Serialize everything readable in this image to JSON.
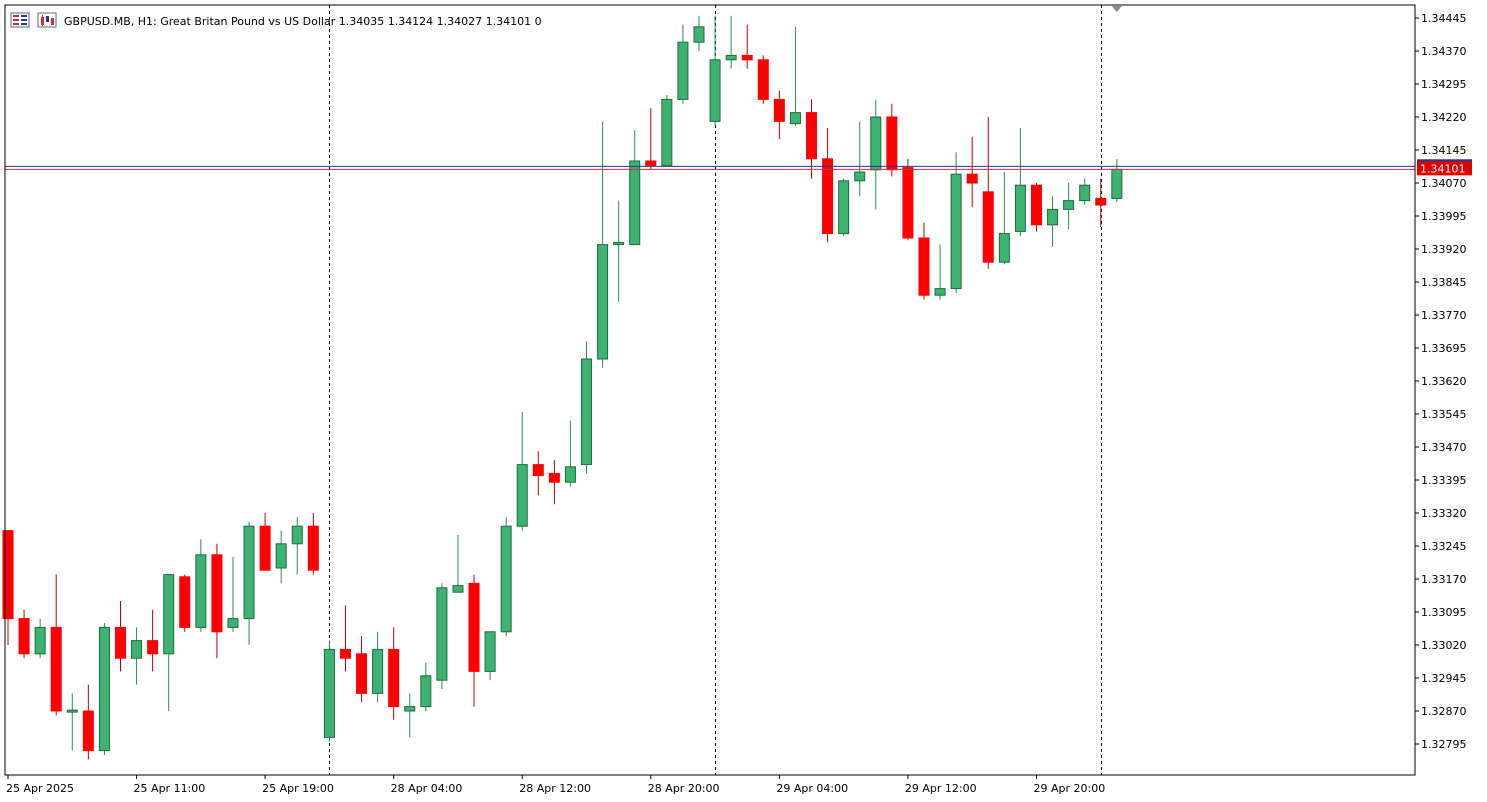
{
  "header": {
    "symbol_text": "GBPUSD.MB, H1:  Great Britan Pound vs US Dollar  1.34035 1.34124 1.34027 1.34101  0",
    "icons": [
      "candles-menu-icon",
      "chart-type-icon"
    ]
  },
  "colors": {
    "bull": "#3cb371",
    "bear": "#ff0000",
    "wick_bull": "#2e8b57",
    "wick_bear": "#c00000",
    "bid_line": "#d32f2f",
    "ask_line": "#1f3a93",
    "price_badge": "#e00000",
    "grid": "#000000",
    "frame": "#000000"
  },
  "chart_data": {
    "type": "candlestick",
    "symbol": "GBPUSD.MB",
    "timeframe": "H1",
    "description": "Great Britan Pound vs US Dollar",
    "last_ohlc": {
      "open": 1.34035,
      "high": 1.34124,
      "low": 1.34027,
      "close": 1.34101
    },
    "current_price_label": "1.34101",
    "y_ticks": [
      "1.34445",
      "1.34370",
      "1.34295",
      "1.34220",
      "1.34145",
      "1.34070",
      "1.33995",
      "1.33920",
      "1.33845",
      "1.33770",
      "1.33695",
      "1.33620",
      "1.33545",
      "1.33470",
      "1.33395",
      "1.33320",
      "1.33245",
      "1.33170",
      "1.33095",
      "1.33020",
      "1.32945",
      "1.32870",
      "1.32795"
    ],
    "ylim": [
      1.3275,
      1.34465
    ],
    "x_ticks": [
      {
        "label": "25 Apr 2025",
        "index": 0
      },
      {
        "label": "25 Apr 11:00",
        "index": 8
      },
      {
        "label": "25 Apr 19:00",
        "index": 16
      },
      {
        "label": "28 Apr 04:00",
        "index": 24
      },
      {
        "label": "28 Apr 12:00",
        "index": 32
      },
      {
        "label": "28 Apr 20:00",
        "index": 40
      },
      {
        "label": "29 Apr 04:00",
        "index": 48
      },
      {
        "label": "29 Apr 12:00",
        "index": 56
      },
      {
        "label": "29 Apr 20:00",
        "index": 64
      }
    ],
    "period_separators": [
      20,
      44,
      68
    ],
    "candles": [
      {
        "o": 1.3328,
        "h": 1.3328,
        "l": 1.3302,
        "c": 1.3308
      },
      {
        "o": 1.3308,
        "h": 1.331,
        "l": 1.3299,
        "c": 1.33
      },
      {
        "o": 1.33,
        "h": 1.3308,
        "l": 1.3299,
        "c": 1.3306
      },
      {
        "o": 1.3306,
        "h": 1.3318,
        "l": 1.3286,
        "c": 1.3287
      },
      {
        "o": 1.3287,
        "h": 1.3291,
        "l": 1.3278,
        "c": 1.32872
      },
      {
        "o": 1.3287,
        "h": 1.3293,
        "l": 1.3276,
        "c": 1.3278
      },
      {
        "o": 1.3278,
        "h": 1.3307,
        "l": 1.3277,
        "c": 1.3306
      },
      {
        "o": 1.3306,
        "h": 1.3312,
        "l": 1.3296,
        "c": 1.3299
      },
      {
        "o": 1.3299,
        "h": 1.3306,
        "l": 1.3293,
        "c": 1.3303
      },
      {
        "o": 1.3303,
        "h": 1.331,
        "l": 1.3296,
        "c": 1.33
      },
      {
        "o": 1.33,
        "h": 1.3318,
        "l": 1.3287,
        "c": 1.3318
      },
      {
        "o": 1.33175,
        "h": 1.3318,
        "l": 1.3305,
        "c": 1.3306
      },
      {
        "o": 1.3306,
        "h": 1.3326,
        "l": 1.3305,
        "c": 1.33225
      },
      {
        "o": 1.33225,
        "h": 1.3325,
        "l": 1.3299,
        "c": 1.3305
      },
      {
        "o": 1.3306,
        "h": 1.3322,
        "l": 1.3305,
        "c": 1.3308
      },
      {
        "o": 1.3308,
        "h": 1.333,
        "l": 1.3302,
        "c": 1.3329
      },
      {
        "o": 1.3329,
        "h": 1.3332,
        "l": 1.3319,
        "c": 1.3319
      },
      {
        "o": 1.33195,
        "h": 1.3328,
        "l": 1.3316,
        "c": 1.3325
      },
      {
        "o": 1.3325,
        "h": 1.3331,
        "l": 1.3318,
        "c": 1.3329
      },
      {
        "o": 1.3329,
        "h": 1.3332,
        "l": 1.3318,
        "c": 1.3319
      },
      {
        "o": 1.3281,
        "h": 1.3303,
        "l": 1.328,
        "c": 1.3301
      },
      {
        "o": 1.3301,
        "h": 1.3311,
        "l": 1.3296,
        "c": 1.3299
      },
      {
        "o": 1.33,
        "h": 1.3304,
        "l": 1.3289,
        "c": 1.3291
      },
      {
        "o": 1.3291,
        "h": 1.3305,
        "l": 1.3289,
        "c": 1.3301
      },
      {
        "o": 1.3301,
        "h": 1.3306,
        "l": 1.3285,
        "c": 1.3288
      },
      {
        "o": 1.3287,
        "h": 1.3291,
        "l": 1.3281,
        "c": 1.3288
      },
      {
        "o": 1.3288,
        "h": 1.3298,
        "l": 1.3287,
        "c": 1.3295
      },
      {
        "o": 1.3294,
        "h": 1.3316,
        "l": 1.3292,
        "c": 1.3315
      },
      {
        "o": 1.3314,
        "h": 1.3327,
        "l": 1.3314,
        "c": 1.33155
      },
      {
        "o": 1.3316,
        "h": 1.3318,
        "l": 1.3288,
        "c": 1.3296
      },
      {
        "o": 1.3296,
        "h": 1.3305,
        "l": 1.3294,
        "c": 1.3305
      },
      {
        "o": 1.3305,
        "h": 1.3331,
        "l": 1.3304,
        "c": 1.3329
      },
      {
        "o": 1.3329,
        "h": 1.3355,
        "l": 1.3328,
        "c": 1.3343
      },
      {
        "o": 1.3343,
        "h": 1.3346,
        "l": 1.3336,
        "c": 1.33405
      },
      {
        "o": 1.3341,
        "h": 1.3344,
        "l": 1.3334,
        "c": 1.3339
      },
      {
        "o": 1.3339,
        "h": 1.3353,
        "l": 1.3338,
        "c": 1.33425
      },
      {
        "o": 1.3343,
        "h": 1.3371,
        "l": 1.3341,
        "c": 1.3367
      },
      {
        "o": 1.3367,
        "h": 1.3421,
        "l": 1.3365,
        "c": 1.3393
      },
      {
        "o": 1.3393,
        "h": 1.3403,
        "l": 1.338,
        "c": 1.33935
      },
      {
        "o": 1.3393,
        "h": 1.3419,
        "l": 1.3393,
        "c": 1.3412
      },
      {
        "o": 1.3412,
        "h": 1.3424,
        "l": 1.341,
        "c": 1.3411
      },
      {
        "o": 1.3411,
        "h": 1.3427,
        "l": 1.3411,
        "c": 1.3426
      },
      {
        "o": 1.3426,
        "h": 1.3443,
        "l": 1.3425,
        "c": 1.3439
      },
      {
        "o": 1.3439,
        "h": 1.3445,
        "l": 1.3437,
        "c": 1.34425
      },
      {
        "o": 1.3421,
        "h": 1.3445,
        "l": 1.342,
        "c": 1.3435
      },
      {
        "o": 1.3435,
        "h": 1.3445,
        "l": 1.3433,
        "c": 1.3436
      },
      {
        "o": 1.3436,
        "h": 1.3443,
        "l": 1.3433,
        "c": 1.3435
      },
      {
        "o": 1.3435,
        "h": 1.3436,
        "l": 1.3425,
        "c": 1.3426
      },
      {
        "o": 1.3426,
        "h": 1.3428,
        "l": 1.3417,
        "c": 1.3421
      },
      {
        "o": 1.34205,
        "h": 1.34425,
        "l": 1.342,
        "c": 1.3423
      },
      {
        "o": 1.3423,
        "h": 1.3426,
        "l": 1.3408,
        "c": 1.34125
      },
      {
        "o": 1.34125,
        "h": 1.34195,
        "l": 1.33935,
        "c": 1.33955
      },
      {
        "o": 1.33955,
        "h": 1.3408,
        "l": 1.3395,
        "c": 1.34075
      },
      {
        "o": 1.34075,
        "h": 1.3421,
        "l": 1.3404,
        "c": 1.34095
      },
      {
        "o": 1.341,
        "h": 1.3426,
        "l": 1.3401,
        "c": 1.3422
      },
      {
        "o": 1.3422,
        "h": 1.3425,
        "l": 1.34085,
        "c": 1.341
      },
      {
        "o": 1.34105,
        "h": 1.34125,
        "l": 1.3394,
        "c": 1.33945
      },
      {
        "o": 1.33945,
        "h": 1.3398,
        "l": 1.33805,
        "c": 1.33815
      },
      {
        "o": 1.33815,
        "h": 1.3393,
        "l": 1.33805,
        "c": 1.3383
      },
      {
        "o": 1.3383,
        "h": 1.3414,
        "l": 1.3382,
        "c": 1.3409
      },
      {
        "o": 1.3409,
        "h": 1.34175,
        "l": 1.34015,
        "c": 1.3407
      },
      {
        "o": 1.3405,
        "h": 1.3422,
        "l": 1.33875,
        "c": 1.3389
      },
      {
        "o": 1.3389,
        "h": 1.34095,
        "l": 1.33885,
        "c": 1.33955
      },
      {
        "o": 1.3396,
        "h": 1.34195,
        "l": 1.3395,
        "c": 1.34065
      },
      {
        "o": 1.34065,
        "h": 1.3407,
        "l": 1.3396,
        "c": 1.33975
      },
      {
        "o": 1.33975,
        "h": 1.3404,
        "l": 1.33925,
        "c": 1.3401
      },
      {
        "o": 1.3401,
        "h": 1.3407,
        "l": 1.33965,
        "c": 1.3403
      },
      {
        "o": 1.3403,
        "h": 1.3408,
        "l": 1.3402,
        "c": 1.34065
      },
      {
        "o": 1.34035,
        "h": 1.3408,
        "l": 1.3397,
        "c": 1.3402
      },
      {
        "o": 1.34035,
        "h": 1.34124,
        "l": 1.34027,
        "c": 1.34101
      }
    ]
  }
}
